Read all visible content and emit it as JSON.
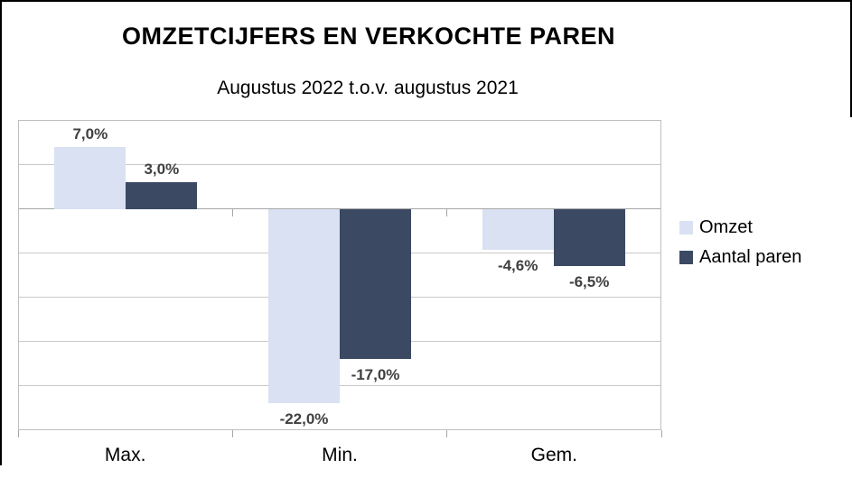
{
  "frame": {
    "background": "#FFFFFF",
    "border_color": "#000000"
  },
  "chart_data": {
    "type": "bar",
    "title": "OMZETCIJFERS EN VERKOCHTE PAREN",
    "subtitle": "Augustus 2022 t.o.v. augustus 2021",
    "categories": [
      "Max.",
      "Min.",
      "Gem."
    ],
    "series": [
      {
        "name": "Omzet",
        "color": "#D9E1F2",
        "values": [
          7.0,
          -22.0,
          -4.6
        ],
        "data_labels": [
          "7,0%",
          "-22,0%",
          "-4,6%"
        ]
      },
      {
        "name": "Aantal paren",
        "color": "#3B4963",
        "values": [
          3.0,
          -17.0,
          -6.5
        ],
        "data_labels": [
          "3,0%",
          "-17,0%",
          "-6,5%"
        ]
      }
    ],
    "xlabel": "",
    "ylabel": "",
    "ylim": [
      -25,
      10
    ],
    "grid_step": 5,
    "grid": true,
    "y_axis_labels_visible": false,
    "legend_position": "right",
    "data_label_color": "#404040",
    "gridline_color": "#C9C9C9",
    "axis_color": "#A6A6A6",
    "plot_border_color": "#BFBFBF"
  }
}
